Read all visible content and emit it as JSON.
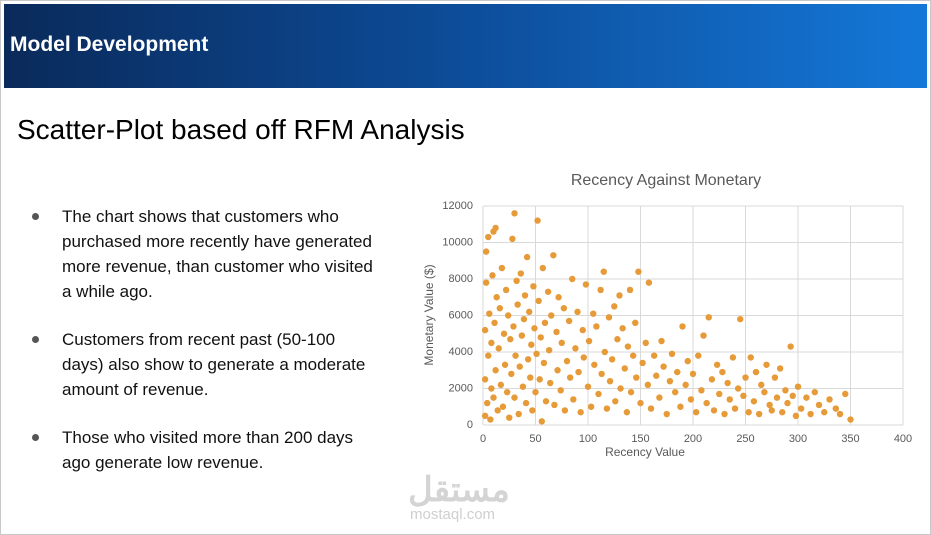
{
  "header": {
    "title": "Model Development"
  },
  "slide": {
    "title": "Scatter-Plot based off RFM Analysis",
    "bullets": [
      "The chart shows that customers who purchased more recently have generated more revenue, than customer who visited a while ago.",
      "Customers from recent past (50-100 days) also show to generate a moderate amount of revenue.",
      "Those who visited more than 200 days ago generate low revenue."
    ]
  },
  "watermark": {
    "logo": "مستقل",
    "site": "mostaql.com"
  },
  "chart_data": {
    "type": "scatter",
    "title": "Recency Against Monetary",
    "x_label": "Recency Value",
    "y_label": "Monetary Value ($)",
    "xlim": [
      0,
      400
    ],
    "xticks": [
      0,
      50,
      100,
      150,
      200,
      250,
      300,
      350,
      400
    ],
    "ylim": [
      0,
      12000
    ],
    "yticks": [
      0,
      2000,
      4000,
      6000,
      8000,
      10000,
      12000
    ],
    "grid": true,
    "series": [
      {
        "color": "#e69a38",
        "x": [
          2,
          2,
          2,
          3,
          3,
          4,
          5,
          5,
          6,
          7,
          8,
          8,
          9,
          10,
          10,
          11,
          12,
          12,
          13,
          14,
          15,
          16,
          17,
          18,
          19,
          20,
          21,
          22,
          23,
          24,
          25,
          26,
          27,
          28,
          29,
          30,
          30,
          31,
          32,
          33,
          34,
          35,
          36,
          37,
          38,
          39,
          40,
          41,
          42,
          43,
          44,
          45,
          46,
          47,
          48,
          49,
          50,
          51,
          52,
          53,
          54,
          55,
          56,
          57,
          58,
          59,
          60,
          62,
          63,
          64,
          65,
          67,
          68,
          70,
          71,
          72,
          74,
          75,
          77,
          78,
          80,
          82,
          83,
          85,
          86,
          88,
          90,
          91,
          93,
          95,
          96,
          98,
          100,
          101,
          103,
          105,
          106,
          108,
          110,
          112,
          113,
          115,
          116,
          118,
          120,
          121,
          123,
          125,
          126,
          128,
          130,
          131,
          133,
          135,
          137,
          138,
          140,
          141,
          143,
          145,
          146,
          148,
          150,
          152,
          155,
          157,
          158,
          160,
          163,
          165,
          168,
          170,
          172,
          175,
          178,
          180,
          183,
          185,
          188,
          190,
          193,
          195,
          198,
          200,
          203,
          205,
          208,
          210,
          213,
          215,
          218,
          220,
          223,
          225,
          228,
          230,
          233,
          235,
          238,
          240,
          243,
          245,
          248,
          250,
          253,
          255,
          258,
          260,
          263,
          265,
          268,
          270,
          273,
          275,
          278,
          280,
          283,
          285,
          288,
          290,
          293,
          295,
          298,
          300,
          303,
          308,
          312,
          316,
          320,
          325,
          330,
          336,
          340,
          345,
          350
        ],
        "values": [
          500,
          2500,
          5200,
          7800,
          9500,
          1200,
          3800,
          10300,
          6100,
          300,
          2000,
          4500,
          8200,
          10600,
          1500,
          5600,
          10800,
          3000,
          7000,
          800,
          4200,
          6400,
          2200,
          8600,
          1000,
          5000,
          3300,
          7400,
          1800,
          6000,
          400,
          4700,
          2800,
          10200,
          5400,
          11600,
          1500,
          3800,
          7900,
          6600,
          600,
          3200,
          8300,
          4900,
          2100,
          5800,
          7100,
          1200,
          9200,
          3600,
          6200,
          2600,
          4400,
          800,
          7600,
          5300,
          1800,
          3900,
          11200,
          6800,
          2500,
          4800,
          200,
          8600,
          3400,
          5600,
          1300,
          7300,
          4100,
          2300,
          6000,
          9300,
          1100,
          5100,
          3000,
          7000,
          1900,
          4500,
          6400,
          800,
          3500,
          5700,
          2600,
          8000,
          1400,
          4200,
          6200,
          2900,
          700,
          5200,
          3700,
          7700,
          2100,
          4600,
          1000,
          6100,
          3300,
          5400,
          1700,
          7400,
          2800,
          8400,
          4000,
          900,
          5900,
          2400,
          3600,
          6500,
          1300,
          4700,
          7100,
          2000,
          5300,
          3100,
          700,
          4300,
          7400,
          1800,
          3800,
          5600,
          2600,
          8400,
          1200,
          3400,
          4500,
          2200,
          7800,
          900,
          3800,
          2700,
          1500,
          4600,
          3200,
          600,
          2400,
          3900,
          1800,
          2900,
          1000,
          5400,
          2200,
          3500,
          1400,
          2800,
          700,
          3800,
          1900,
          4900,
          1200,
          5900,
          2500,
          800,
          3300,
          1700,
          2900,
          600,
          2300,
          1400,
          3700,
          900,
          2000,
          5800,
          1600,
          2600,
          700,
          3700,
          1300,
          2900,
          600,
          2200,
          1800,
          3300,
          1100,
          800,
          2600,
          1500,
          3100,
          700,
          1900,
          1200,
          4300,
          1600,
          500,
          2100,
          900,
          1500,
          600,
          1800,
          1100,
          700,
          1400,
          900,
          600,
          1700,
          300
        ]
      }
    ]
  }
}
